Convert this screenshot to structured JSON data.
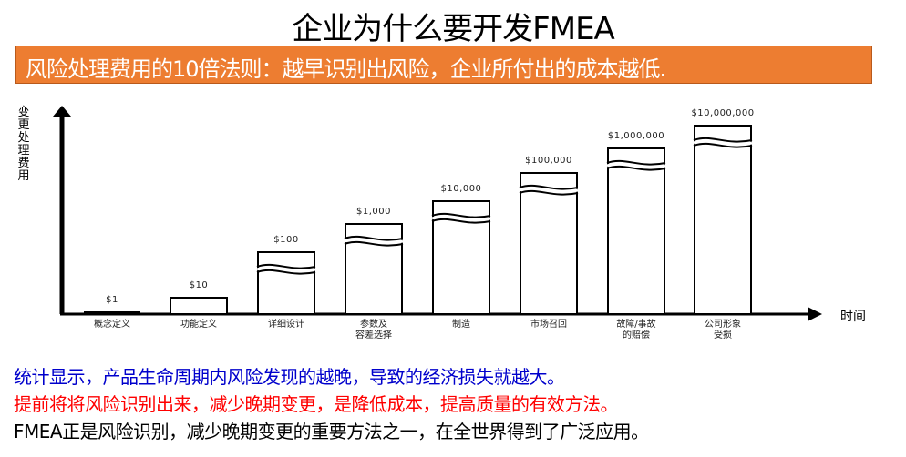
{
  "title": "企业为什么要开发FMEA",
  "banner": {
    "text": "风险处理费用的10倍法则：越早识别出风险，企业所付出的成本越低.",
    "color": "#ed7d31"
  },
  "chart_data": {
    "type": "bar",
    "title": "",
    "xlabel": "时间",
    "ylabel": "变更处理费用",
    "scale": "broken-axis (each bar 10× previous, bars drawn with break marks)",
    "categories": [
      "概念定义",
      "功能定义",
      "详细设计",
      "参数及\n容差选择",
      "制造",
      "市场召回",
      "故障/事故\n的赔偿",
      "公司形象\n受损"
    ],
    "values": [
      1,
      10,
      100,
      1000,
      10000,
      100000,
      1000000,
      10000000
    ],
    "value_labels": [
      "$1",
      "$10",
      "$100",
      "$1,000",
      "$10,000",
      "$100,000",
      "$1,000,000",
      "$10,000,000"
    ],
    "grid": false,
    "legend": null
  },
  "statements": [
    {
      "text": "统计显示，产品生命周期内风险发现的越晚，导致的经济损失就越大。",
      "color": "#0000cc"
    },
    {
      "text": "提前将将风险识别出来，减少晚期变更，是降低成本，提高质量的有效方法。",
      "color": "#ff0000"
    },
    {
      "text": "FMEA正是风险识别，减少晚期变更的重要方法之一，在全世界得到了广泛应用。",
      "color": "#000000"
    }
  ]
}
